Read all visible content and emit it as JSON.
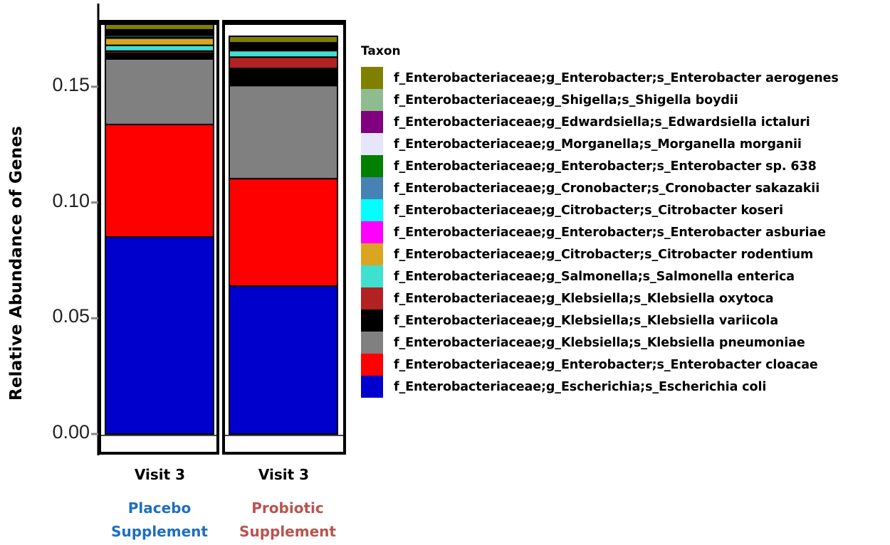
{
  "chart_data": {
    "type": "bar",
    "stacked": true,
    "title": "",
    "xlabel": "",
    "ylabel": "Relative Abundance of Genes",
    "ylim": [
      0,
      0.18
    ],
    "yticks": [
      0.0,
      0.05,
      0.1,
      0.15
    ],
    "ytick_labels": [
      "0.00",
      "0.05",
      "0.10",
      "0.15"
    ],
    "grid": false,
    "legend_position": "right",
    "legend_title": "Taxon",
    "categories": [
      "Visit 3",
      "Visit 3"
    ],
    "groups": [
      {
        "label_line1": "Placebo",
        "label_line2": "Supplement",
        "color": "#1F6FBF"
      },
      {
        "label_line1": "Probiotic",
        "label_line2": "Supplement",
        "color": "#B85450"
      }
    ],
    "series": [
      {
        "name": "f_Enterobacteriaceae;g_Escherichia;s_Escherichia coli",
        "color": "#0000CD",
        "values": [
          0.0851,
          0.0639
        ]
      },
      {
        "name": "f_Enterobacteriaceae;g_Enterobacter;s_Enterobacter cloacae",
        "color": "#FF0000",
        "values": [
          0.0486,
          0.0464
        ]
      },
      {
        "name": "f_Enterobacteriaceae;g_Klebsiella;s_Klebsiella pneumoniae",
        "color": "#808080",
        "values": [
          0.0283,
          0.0402
        ]
      },
      {
        "name": "f_Enterobacteriaceae;g_Klebsiella;s_Klebsiella variicola",
        "color": "#000000",
        "values": [
          0.0025,
          0.0074
        ]
      },
      {
        "name": "f_Enterobacteriaceae;g_Klebsiella;s_Klebsiella oxytoca",
        "color": "#B22222",
        "values": [
          0.0009,
          0.0049
        ]
      },
      {
        "name": "f_Enterobacteriaceae;g_Salmonella;s_Salmonella enterica",
        "color": "#40E0D0",
        "values": [
          0.0025,
          0.0028
        ]
      },
      {
        "name": "f_Enterobacteriaceae;g_Citrobacter;s_Citrobacter rodentium",
        "color": "#DAA520",
        "values": [
          0.0031,
          0.0003
        ]
      },
      {
        "name": "f_Enterobacteriaceae;g_Enterobacter;s_Enterobacter asburiae",
        "color": "#FF00FF",
        "values": [
          0.0004,
          0.0003
        ]
      },
      {
        "name": "f_Enterobacteriaceae;g_Citrobacter;s_Citrobacter koseri",
        "color": "#00FFFF",
        "values": [
          0.0008,
          0.0003
        ]
      },
      {
        "name": "f_Enterobacteriaceae;g_Cronobacter;s_Cronobacter sakazakii",
        "color": "#4682B4",
        "values": [
          0.0006,
          0.0006
        ]
      },
      {
        "name": "f_Enterobacteriaceae;g_Enterobacter;s_Enterobacter sp. 638",
        "color": "#008000",
        "values": [
          0.0006,
          0.0006
        ]
      },
      {
        "name": "f_Enterobacteriaceae;g_Morganella;s_Morganella morganii",
        "color": "#E6E6FA",
        "values": [
          0.0004,
          0.0004
        ]
      },
      {
        "name": "f_Enterobacteriaceae;g_Edwardsiella;s_Edwardsiella ictaluri",
        "color": "#800080",
        "values": [
          0.0004,
          0.0004
        ]
      },
      {
        "name": "f_Enterobacteriaceae;g_Shigella;s_Shigella boydii",
        "color": "#8FBC8F",
        "values": [
          0.0004,
          0.0005
        ]
      },
      {
        "name": "f_Enterobacteriaceae;g_Enterobacter;s_Enterobacter aerogenes",
        "color": "#808000",
        "values": [
          0.0024,
          0.0028
        ]
      }
    ],
    "totals": [
      0.178,
      0.1714
    ]
  },
  "legend": {
    "title": "Taxon",
    "items": [
      {
        "label": "f_Enterobacteriaceae;g_Enterobacter;s_Enterobacter aerogenes",
        "color": "#808000"
      },
      {
        "label": "f_Enterobacteriaceae;g_Shigella;s_Shigella boydii",
        "color": "#8FBC8F"
      },
      {
        "label": "f_Enterobacteriaceae;g_Edwardsiella;s_Edwardsiella ictaluri",
        "color": "#800080"
      },
      {
        "label": "f_Enterobacteriaceae;g_Morganella;s_Morganella morganii",
        "color": "#E6E6FA"
      },
      {
        "label": "f_Enterobacteriaceae;g_Enterobacter;s_Enterobacter sp. 638",
        "color": "#008000"
      },
      {
        "label": "f_Enterobacteriaceae;g_Cronobacter;s_Cronobacter sakazakii",
        "color": "#4682B4"
      },
      {
        "label": "f_Enterobacteriaceae;g_Citrobacter;s_Citrobacter koseri",
        "color": "#00FFFF"
      },
      {
        "label": "f_Enterobacteriaceae;g_Enterobacter;s_Enterobacter asburiae",
        "color": "#FF00FF"
      },
      {
        "label": "f_Enterobacteriaceae;g_Citrobacter;s_Citrobacter rodentium",
        "color": "#DAA520"
      },
      {
        "label": "f_Enterobacteriaceae;g_Salmonella;s_Salmonella enterica",
        "color": "#40E0D0"
      },
      {
        "label": "f_Enterobacteriaceae;g_Klebsiella;s_Klebsiella oxytoca",
        "color": "#B22222"
      },
      {
        "label": "f_Enterobacteriaceae;g_Klebsiella;s_Klebsiella variicola",
        "color": "#000000"
      },
      {
        "label": "f_Enterobacteriaceae;g_Klebsiella;s_Klebsiella pneumoniae",
        "color": "#808080"
      },
      {
        "label": "f_Enterobacteriaceae;g_Enterobacter;s_Enterobacter cloacae",
        "color": "#FF0000"
      },
      {
        "label": "f_Enterobacteriaceae;g_Escherichia;s_Escherichia coli",
        "color": "#0000CD"
      }
    ]
  },
  "axis": {
    "ylabel": "Relative Abundance of Genes",
    "ticks": [
      "0.15",
      "0.10",
      "0.05",
      "0.00"
    ]
  },
  "xaxis": {
    "categories": [
      "Visit 3",
      "Visit 3"
    ]
  },
  "groups": [
    {
      "line1": "Placebo",
      "line2": "Supplement"
    },
    {
      "line1": "Probiotic",
      "line2": "Supplement"
    }
  ]
}
